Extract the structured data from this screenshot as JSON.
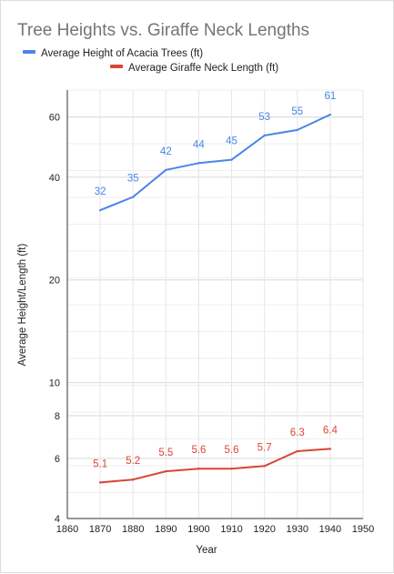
{
  "chart_data": {
    "type": "line",
    "title": "Tree Heights vs. Giraffe Neck Lengths",
    "xlabel": "Year",
    "ylabel": "Average Height/Length (ft)",
    "yscale": "log",
    "xlim": [
      1860,
      1950
    ],
    "ylim": [
      4,
      72
    ],
    "x_ticks": [
      1860,
      1870,
      1880,
      1890,
      1900,
      1910,
      1920,
      1930,
      1940,
      1950
    ],
    "y_ticks": [
      4,
      6,
      8,
      10,
      20,
      40,
      60
    ],
    "grid": true,
    "legend_position": "top",
    "x": [
      1870,
      1880,
      1890,
      1900,
      1910,
      1920,
      1930,
      1940
    ],
    "series": [
      {
        "name": "Average Height of Acacia Trees (ft)",
        "color": "#4a86e8",
        "values": [
          32,
          35,
          42,
          44,
          45,
          53,
          55,
          61
        ],
        "labels": [
          "32",
          "35",
          "42",
          "44",
          "45",
          "53",
          "55",
          "61"
        ]
      },
      {
        "name": "Average Giraffe Neck Length (ft)",
        "color": "#db4437",
        "values": [
          5.1,
          5.2,
          5.5,
          5.6,
          5.6,
          5.7,
          6.3,
          6.4
        ],
        "labels": [
          "5.1",
          "5.2",
          "5.5",
          "5.6",
          "5.6",
          "5.7",
          "6.3",
          "6.4"
        ]
      }
    ]
  }
}
